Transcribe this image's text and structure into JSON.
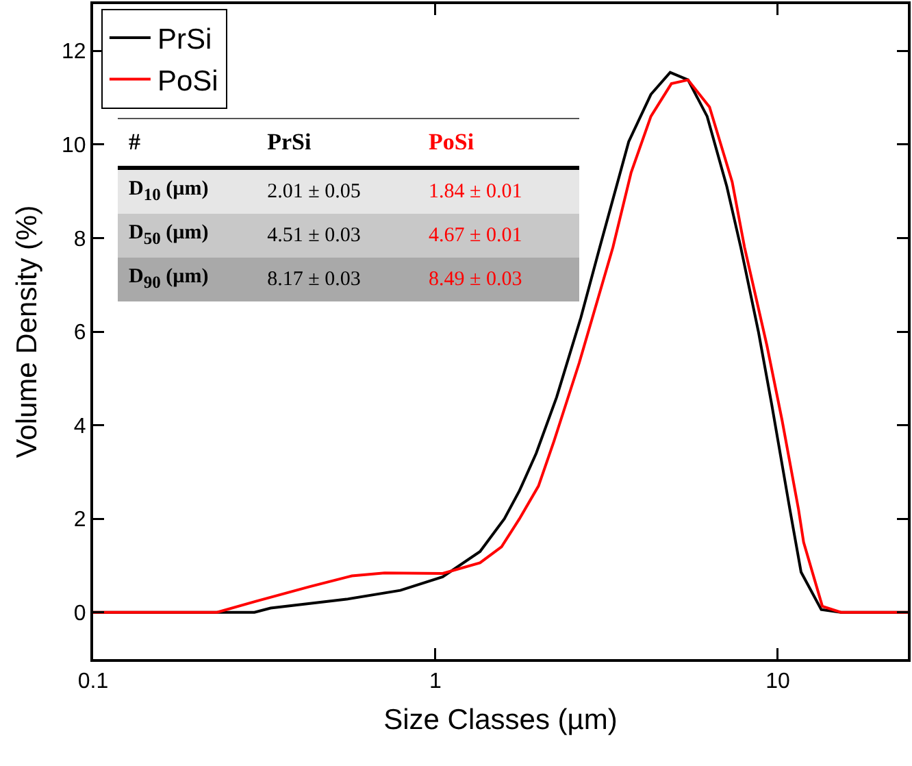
{
  "chart_data": {
    "type": "line",
    "xlabel": "Size Classes (µm)",
    "ylabel": "Volume Density (%)",
    "log": "x",
    "xlim": [
      0.1,
      24
    ],
    "xticks": [
      0.1,
      1,
      10
    ],
    "ylim": [
      -1,
      13
    ],
    "yticks": [
      0,
      2,
      4,
      6,
      8,
      10,
      12
    ],
    "grid": false,
    "legend": "top left",
    "line_style": "solid",
    "marker": "none",
    "series": [
      {
        "name": "PrSi",
        "color": "#000000",
        "x": [
          0.1,
          0.23,
          0.296,
          0.33,
          0.55,
          0.79,
          1.05,
          1.35,
          1.59,
          1.76,
          1.97,
          2.26,
          2.66,
          3.02,
          3.67,
          4.26,
          4.85,
          5.47,
          6.22,
          7.1,
          7.8,
          8.78,
          9.6,
          10.85,
          11.7,
          13.4,
          15.3,
          24
        ],
        "values": [
          0,
          0,
          0,
          0.09,
          0.28,
          0.47,
          0.76,
          1.3,
          2.0,
          2.6,
          3.4,
          4.6,
          6.3,
          7.8,
          10.06,
          11.07,
          11.54,
          11.38,
          10.6,
          9.1,
          7.8,
          6.0,
          4.45,
          2.2,
          0.86,
          0.06,
          0,
          0
        ]
      },
      {
        "name": "PoSi",
        "color": "#ff0000",
        "x": [
          0.1,
          0.23,
          0.3,
          0.43,
          0.57,
          0.71,
          1.05,
          1.35,
          1.56,
          1.76,
          2.0,
          2.22,
          2.63,
          3.3,
          3.73,
          4.26,
          4.89,
          5.47,
          6.32,
          7.36,
          8.0,
          9.3,
          10.3,
          11.5,
          11.9,
          13.5,
          15.3,
          24
        ],
        "values": [
          0,
          0,
          0.24,
          0.55,
          0.78,
          0.84,
          0.83,
          1.06,
          1.4,
          2.0,
          2.7,
          3.66,
          5.33,
          7.8,
          9.4,
          10.6,
          11.3,
          11.38,
          10.8,
          9.2,
          7.8,
          5.7,
          4.1,
          2.2,
          1.5,
          0.13,
          0,
          0
        ]
      }
    ],
    "annotations": [
      "#",
      "PrSi",
      "PoSi",
      "D$_{10}$ (µm)",
      "2.01 ± 0.05",
      "1.84 ± 0.01",
      "D$_{50}$ (µm)",
      "4.51 ± 0.03",
      "4.67 ± 0.01",
      "D$_{90}$ (µm)",
      "8.17 ± 0.03",
      "8.49 ± 0.03"
    ]
  }
}
